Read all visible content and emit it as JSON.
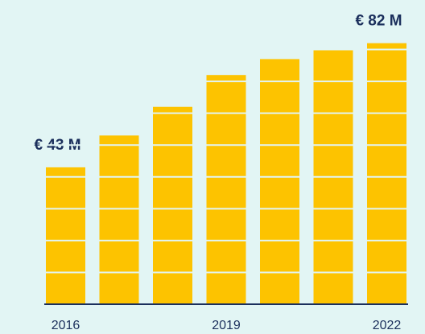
{
  "chart_data": {
    "type": "bar",
    "categories": [
      "2016",
      null,
      null,
      "2019",
      null,
      null,
      "2022"
    ],
    "values": [
      43,
      53,
      62,
      72,
      77,
      80,
      82
    ],
    "value_labels": [
      "€ 43 M",
      null,
      null,
      null,
      null,
      null,
      "€ 82 M"
    ],
    "color": "#fdc300",
    "ylim": [
      0,
      90
    ],
    "yticks": [
      0,
      10,
      20,
      30,
      40,
      50,
      60,
      70,
      80
    ],
    "grid": true
  }
}
